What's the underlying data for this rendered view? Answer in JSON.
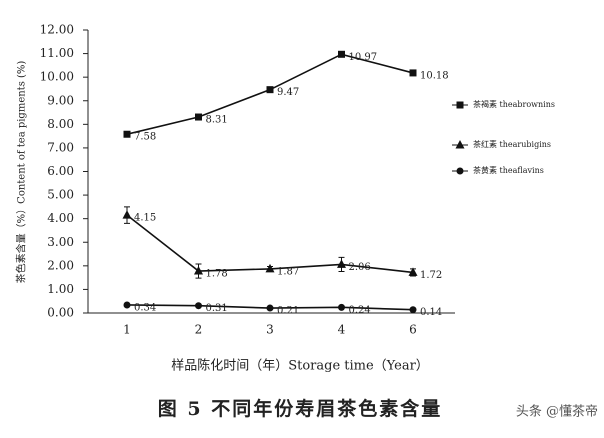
{
  "chart_data": {
    "type": "line",
    "y_label": "茶色素含量（%）Content of tea pigments (%)",
    "x_label": "样品陈化时间（年）Storage time（Year）",
    "caption": "图 5  不同年份寿眉茶色素含量",
    "watermark": "头条 @懂茶帝",
    "categories": [
      "1",
      "2",
      "3",
      "4",
      "6"
    ],
    "ylim": [
      0,
      12
    ],
    "yticks": [
      {
        "value": 0,
        "label": "0.00"
      },
      {
        "value": 1,
        "label": "1.00"
      },
      {
        "value": 2,
        "label": "2.00"
      },
      {
        "value": 3,
        "label": "3.00"
      },
      {
        "value": 4,
        "label": "4.00"
      },
      {
        "value": 5,
        "label": "5.00"
      },
      {
        "value": 6,
        "label": "6.00"
      },
      {
        "value": 7,
        "label": "7.00"
      },
      {
        "value": 8,
        "label": "8.00"
      },
      {
        "value": 9,
        "label": "9.00"
      },
      {
        "value": 10,
        "label": "10.00"
      },
      {
        "value": 11,
        "label": "11.00"
      },
      {
        "value": 12,
        "label": "12.00"
      }
    ],
    "series": [
      {
        "name": "茶褐素 theabrownins",
        "color": "#111111",
        "marker": "square",
        "values": [
          7.58,
          8.31,
          9.47,
          10.97,
          10.18
        ],
        "errors": [
          0.05,
          0.08,
          0.1,
          0.08,
          0.06
        ]
      },
      {
        "name": "茶红素 thearubigins",
        "color": "#111111",
        "marker": "triangle",
        "values": [
          4.15,
          1.78,
          1.87,
          2.06,
          1.72
        ],
        "errors": [
          0.35,
          0.3,
          0.1,
          0.3,
          0.15
        ]
      },
      {
        "name": "茶黄素 theaflavins",
        "color": "#111111",
        "marker": "circle",
        "values": [
          0.34,
          0.31,
          0.21,
          0.24,
          0.14
        ],
        "errors": [
          0.03,
          0.03,
          0.03,
          0.03,
          0.03
        ]
      }
    ]
  }
}
